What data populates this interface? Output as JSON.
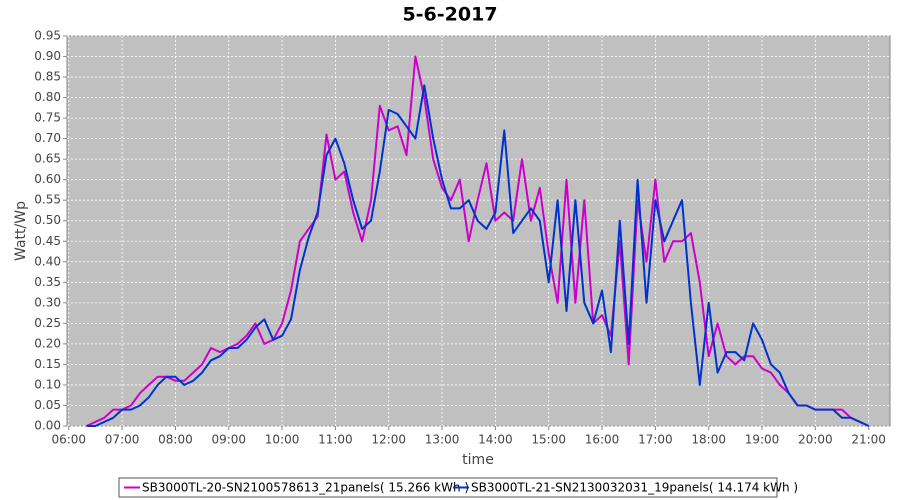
{
  "chart_data": {
    "type": "line",
    "title": "5-6-2017",
    "x_label": "time",
    "y_label": "Watt/Wp",
    "x": [
      "06:20",
      "06:30",
      "06:40",
      "06:50",
      "07:00",
      "07:10",
      "07:20",
      "07:30",
      "07:40",
      "07:50",
      "08:00",
      "08:10",
      "08:20",
      "08:30",
      "08:40",
      "08:50",
      "09:00",
      "09:10",
      "09:20",
      "09:30",
      "09:40",
      "09:50",
      "10:00",
      "10:10",
      "10:20",
      "10:30",
      "10:40",
      "10:50",
      "11:00",
      "11:10",
      "11:20",
      "11:30",
      "11:40",
      "11:50",
      "12:00",
      "12:10",
      "12:20",
      "12:30",
      "12:40",
      "12:50",
      "13:00",
      "13:10",
      "13:20",
      "13:30",
      "13:40",
      "13:50",
      "14:00",
      "14:10",
      "14:20",
      "14:30",
      "14:40",
      "14:50",
      "15:00",
      "15:10",
      "15:20",
      "15:30",
      "15:40",
      "15:50",
      "16:00",
      "16:10",
      "16:20",
      "16:30",
      "16:40",
      "16:50",
      "17:00",
      "17:10",
      "17:20",
      "17:30",
      "17:40",
      "17:50",
      "18:00",
      "18:10",
      "18:20",
      "18:30",
      "18:40",
      "18:50",
      "19:00",
      "19:10",
      "19:20",
      "19:30",
      "19:40",
      "19:50",
      "20:00",
      "20:10",
      "20:20",
      "20:30",
      "20:40",
      "20:50",
      "21:00"
    ],
    "series": [
      {
        "name": "SB3000TL-20-SN2100578613_21panels( 15.266 kWh )",
        "color": "#cc00cc",
        "values": [
          0.0,
          0.01,
          0.02,
          0.04,
          0.04,
          0.05,
          0.08,
          0.1,
          0.12,
          0.12,
          0.11,
          0.11,
          0.13,
          0.15,
          0.19,
          0.18,
          0.19,
          0.2,
          0.22,
          0.25,
          0.2,
          0.21,
          0.25,
          0.33,
          0.45,
          0.48,
          0.51,
          0.71,
          0.6,
          0.62,
          0.52,
          0.45,
          0.55,
          0.78,
          0.72,
          0.73,
          0.66,
          0.9,
          0.8,
          0.65,
          0.58,
          0.55,
          0.6,
          0.45,
          0.55,
          0.64,
          0.5,
          0.52,
          0.5,
          0.65,
          0.5,
          0.58,
          0.42,
          0.3,
          0.6,
          0.3,
          0.55,
          0.25,
          0.27,
          0.22,
          0.45,
          0.15,
          0.55,
          0.4,
          0.6,
          0.4,
          0.45,
          0.45,
          0.47,
          0.35,
          0.17,
          0.25,
          0.17,
          0.15,
          0.17,
          0.17,
          0.14,
          0.13,
          0.1,
          0.08,
          0.05,
          0.05,
          0.04,
          0.04,
          0.04,
          0.04,
          0.02,
          0.01,
          0.0
        ]
      },
      {
        "name": "SB3000TL-21-SN2130032031_19panels( 14.174 kWh )",
        "color": "#0033cc",
        "values": [
          0.0,
          0.0,
          0.01,
          0.02,
          0.04,
          0.04,
          0.05,
          0.07,
          0.1,
          0.12,
          0.12,
          0.1,
          0.11,
          0.13,
          0.16,
          0.17,
          0.19,
          0.19,
          0.21,
          0.24,
          0.26,
          0.21,
          0.22,
          0.26,
          0.38,
          0.46,
          0.52,
          0.66,
          0.7,
          0.64,
          0.55,
          0.48,
          0.5,
          0.62,
          0.77,
          0.76,
          0.73,
          0.7,
          0.83,
          0.7,
          0.6,
          0.53,
          0.53,
          0.55,
          0.5,
          0.48,
          0.52,
          0.72,
          0.47,
          0.5,
          0.53,
          0.5,
          0.35,
          0.55,
          0.28,
          0.55,
          0.3,
          0.25,
          0.33,
          0.18,
          0.5,
          0.2,
          0.6,
          0.3,
          0.55,
          0.45,
          0.5,
          0.55,
          0.3,
          0.1,
          0.3,
          0.13,
          0.18,
          0.18,
          0.16,
          0.25,
          0.21,
          0.15,
          0.13,
          0.08,
          0.05,
          0.05,
          0.04,
          0.04,
          0.04,
          0.02,
          0.02,
          0.01,
          0.0
        ]
      }
    ],
    "xlim": [
      "05:58",
      "21:24"
    ],
    "xticks": [
      "06:00",
      "07:00",
      "08:00",
      "09:00",
      "10:00",
      "11:00",
      "12:00",
      "13:00",
      "14:00",
      "15:00",
      "16:00",
      "17:00",
      "18:00",
      "19:00",
      "20:00",
      "21:00"
    ],
    "ylim": [
      0,
      0.95
    ],
    "yticks": [
      {
        "value": 0,
        "label": "0.00"
      },
      0.05,
      {
        "value": 0.1,
        "label": "0.10"
      },
      0.15,
      {
        "value": 0.2,
        "label": "0.20"
      },
      0.25,
      {
        "value": 0.3,
        "label": "0.30"
      },
      0.35,
      {
        "value": 0.4,
        "label": "0.40"
      },
      0.45,
      {
        "value": 0.5,
        "label": "0.50"
      },
      0.55,
      {
        "value": 0.6,
        "label": "0.60"
      },
      0.65,
      {
        "value": 0.7,
        "label": "0.70"
      },
      0.75,
      {
        "value": 0.8,
        "label": "0.80"
      },
      0.85,
      {
        "value": 0.9,
        "label": "0.90"
      },
      0.95
    ],
    "grid": true
  }
}
